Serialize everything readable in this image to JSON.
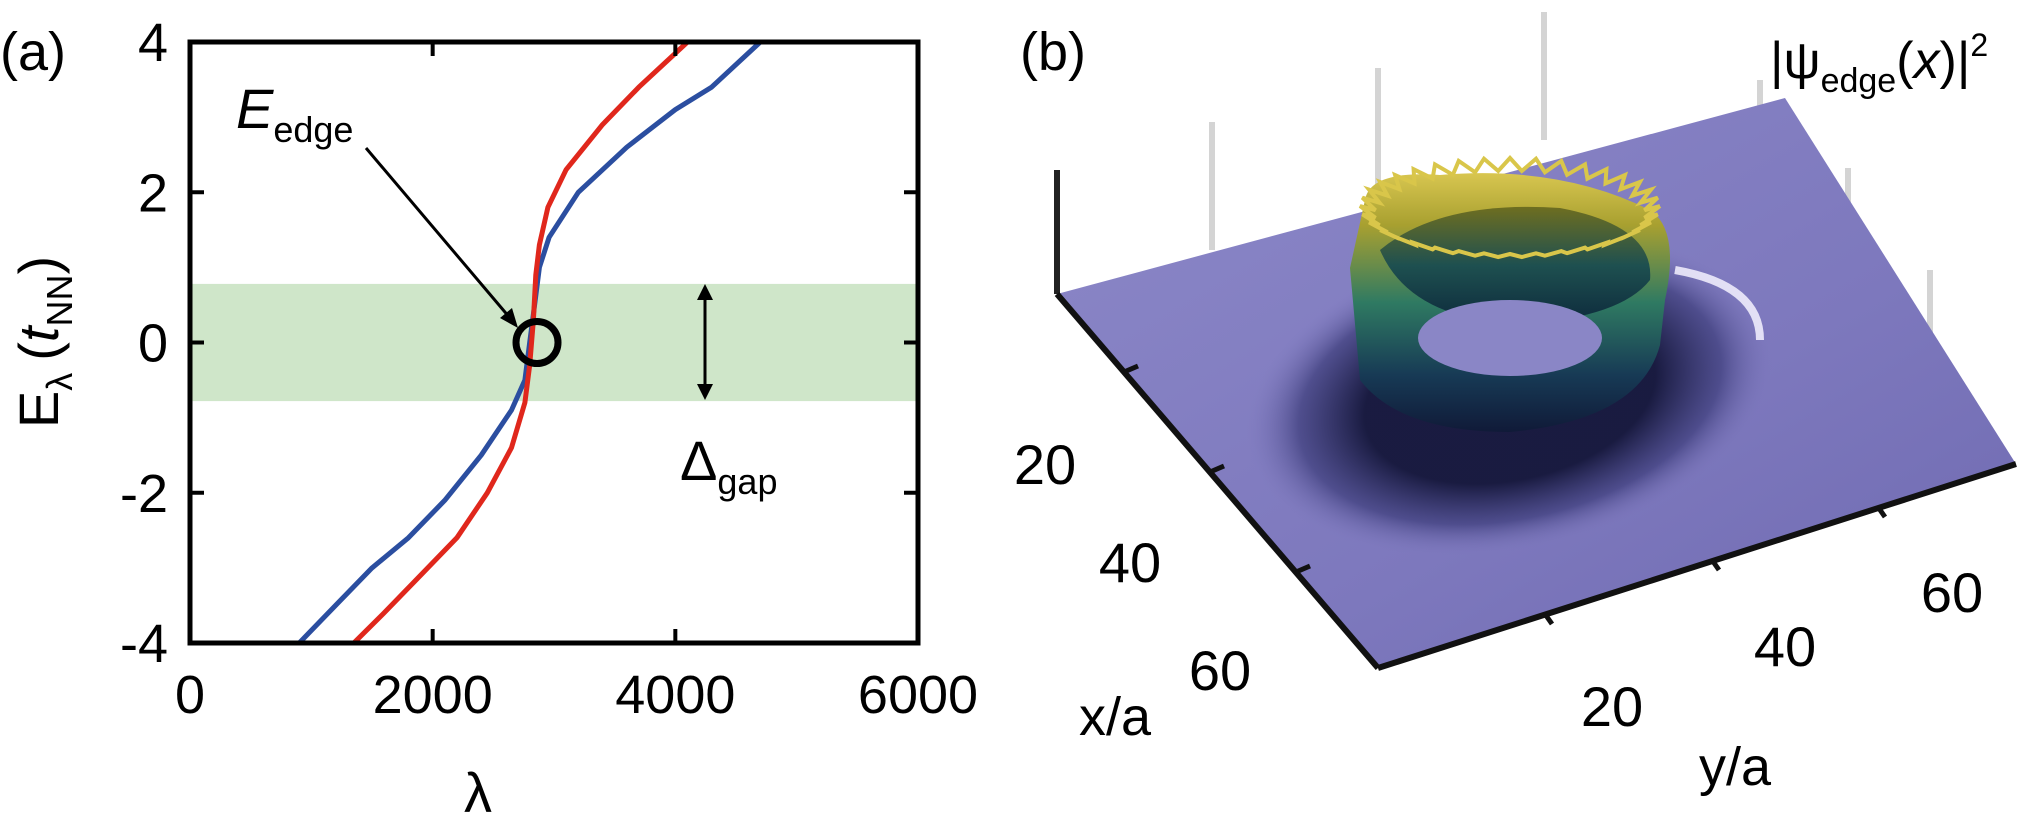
{
  "colors": {
    "blue": "#2b4ea0",
    "red": "#e0271c",
    "gap_band": "#cfe6c9",
    "surface_base": "#7e79bf",
    "ring_top": "#c8b23a"
  },
  "panel_a": {
    "panel_label": "(a)",
    "ylabel": "E",
    "ylabel_sub": "λ",
    "ylabel_unit_open": "(",
    "ylabel_unit_t": "t",
    "ylabel_unit_sub": "NN",
    "ylabel_unit_close": ")",
    "xlabel": "λ",
    "edge_label": "E",
    "edge_label_sub": "edge",
    "gap_label": "Δ",
    "gap_label_sub": "gap"
  },
  "panel_b": {
    "panel_label": "(b)",
    "zlabel_pre": "|ψ",
    "zlabel_sub": "edge",
    "zlabel_mid": "(",
    "zlabel_x": "x",
    "zlabel_close": ")|",
    "zlabel_sup": "2",
    "xlabel": "x/a",
    "ylabel": "y/a",
    "x_ticks": [
      "20",
      "40",
      "60"
    ],
    "y_ticks": [
      "20",
      "40",
      "60"
    ]
  },
  "chart_data": [
    {
      "type": "line",
      "title": "",
      "xlabel": "λ",
      "ylabel": "E_λ (t_NN)",
      "xlim": [
        0,
        6000
      ],
      "ylim": [
        -4,
        4
      ],
      "x_ticks": [
        0,
        2000,
        4000,
        6000
      ],
      "y_ticks": [
        -4,
        -2,
        0,
        2,
        4
      ],
      "grid": false,
      "gap_band": [
        -0.78,
        0.78
      ],
      "edge_state_point": [
        2860,
        0
      ],
      "series": [
        {
          "color": "#2b4ea0",
          "x": [
            900,
            1200,
            1500,
            1800,
            2100,
            2400,
            2650,
            2760,
            2800,
            2840,
            2880,
            2960,
            3200,
            3600,
            4000,
            4300,
            4700
          ],
          "y": [
            -4,
            -3.5,
            -3.0,
            -2.6,
            -2.1,
            -1.5,
            -0.9,
            -0.5,
            0.0,
            0.5,
            1.0,
            1.4,
            2.0,
            2.6,
            3.1,
            3.4,
            4.0
          ]
        },
        {
          "color": "#e0271c",
          "x": [
            1350,
            1600,
            1900,
            2200,
            2450,
            2650,
            2760,
            2800,
            2830,
            2850,
            2880,
            2950,
            3100,
            3400,
            3700,
            4100
          ],
          "y": [
            -4,
            -3.6,
            -3.1,
            -2.6,
            -2.0,
            -1.4,
            -0.8,
            -0.3,
            0.3,
            0.9,
            1.3,
            1.8,
            2.3,
            2.9,
            3.4,
            4.0
          ]
        }
      ]
    },
    {
      "type": "surface",
      "title": "",
      "xlabel": "x/a",
      "ylabel": "y/a",
      "zlabel": "|ψ_edge(x)|²",
      "x_ticks": [
        20,
        40,
        60
      ],
      "y_ticks": [
        20,
        40,
        60
      ],
      "grid": true
    }
  ]
}
